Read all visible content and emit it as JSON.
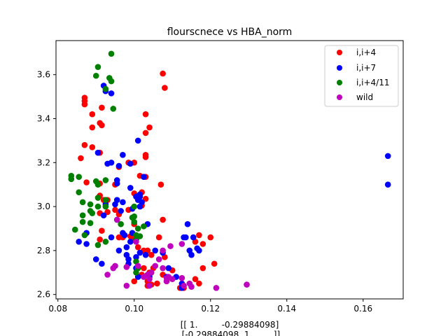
{
  "chart_data": {
    "type": "scatter",
    "title": "flourscnece vs HBA_norm",
    "xlabel_lines": [
      "[[ 1.         -0.29884098]",
      " [-0.29884098  1.        ]]"
    ],
    "ylabel": "",
    "xlim": [
      0.0795,
      0.1705
    ],
    "ylim": [
      2.58,
      3.755
    ],
    "xticks": [
      "0.08",
      "0.10",
      "0.12",
      "0.14",
      "0.16"
    ],
    "xtick_values": [
      0.08,
      0.1,
      0.12,
      0.14,
      0.16
    ],
    "yticks": [
      "2.6",
      "2.8",
      "3.0",
      "3.2",
      "3.4",
      "3.6"
    ],
    "ytick_values": [
      2.6,
      2.8,
      3.0,
      3.2,
      3.4,
      3.6
    ],
    "legend_position": "top-right",
    "grid": false,
    "series": [
      {
        "name": "i,i+4",
        "color": "#ff0000",
        "points": [
          [
            0.087,
            3.495
          ],
          [
            0.087,
            3.48
          ],
          [
            0.087,
            3.465
          ],
          [
            0.089,
            3.42
          ],
          [
            0.089,
            3.36
          ],
          [
            0.091,
            3.38
          ],
          [
            0.0915,
            3.37
          ],
          [
            0.0915,
            3.45
          ],
          [
            0.087,
            3.28
          ],
          [
            0.089,
            3.27
          ],
          [
            0.091,
            3.245
          ],
          [
            0.086,
            3.22
          ],
          [
            0.0875,
            3.11
          ],
          [
            0.091,
            3.105
          ],
          [
            0.096,
            3.18
          ],
          [
            0.0985,
            3.2
          ],
          [
            0.1,
            3.2
          ],
          [
            0.1015,
            3.14
          ],
          [
            0.103,
            3.42
          ],
          [
            0.103,
            3.335
          ],
          [
            0.104,
            3.36
          ],
          [
            0.1075,
            3.605
          ],
          [
            0.108,
            3.54
          ],
          [
            0.103,
            3.235
          ],
          [
            0.103,
            3.225
          ],
          [
            0.103,
            3.135
          ],
          [
            0.107,
            3.1
          ],
          [
            0.102,
            3.065
          ],
          [
            0.103,
            3.035
          ],
          [
            0.095,
            3.1
          ],
          [
            0.093,
            3.03
          ],
          [
            0.091,
            3.05
          ],
          [
            0.092,
            3.03
          ],
          [
            0.091,
            2.97
          ],
          [
            0.093,
            2.975
          ],
          [
            0.095,
            2.985
          ],
          [
            0.096,
            2.965
          ],
          [
            0.0985,
            2.985
          ],
          [
            0.1,
            3.06
          ],
          [
            0.102,
            3.005
          ],
          [
            0.1,
            2.92
          ],
          [
            0.099,
            2.865
          ],
          [
            0.096,
            2.86
          ],
          [
            0.097,
            2.86
          ],
          [
            0.091,
            2.85
          ],
          [
            0.0915,
            2.89
          ],
          [
            0.1,
            2.85
          ],
          [
            0.101,
            2.815
          ],
          [
            0.1035,
            2.8
          ],
          [
            0.1045,
            2.78
          ],
          [
            0.1025,
            2.8
          ],
          [
            0.1065,
            2.86
          ],
          [
            0.1075,
            2.94
          ],
          [
            0.108,
            2.77
          ],
          [
            0.1025,
            2.72
          ],
          [
            0.104,
            2.7
          ],
          [
            0.105,
            2.72
          ],
          [
            0.102,
            2.69
          ],
          [
            0.1035,
            2.66
          ],
          [
            0.1035,
            2.64
          ],
          [
            0.1045,
            2.645
          ],
          [
            0.106,
            2.65
          ],
          [
            0.1075,
            2.69
          ],
          [
            0.1085,
            2.66
          ],
          [
            0.11,
            2.71
          ],
          [
            0.112,
            2.63
          ],
          [
            0.113,
            2.63
          ],
          [
            0.116,
            2.67
          ],
          [
            0.117,
            2.65
          ],
          [
            0.116,
            2.84
          ],
          [
            0.117,
            2.87
          ],
          [
            0.118,
            2.83
          ],
          [
            0.12,
            2.86
          ],
          [
            0.118,
            2.72
          ],
          [
            0.121,
            2.74
          ],
          [
            0.1,
            2.66
          ]
        ]
      },
      {
        "name": "i,i+7",
        "color": "#0000ff",
        "points": [
          [
            0.0925,
            3.525
          ],
          [
            0.094,
            3.515
          ],
          [
            0.092,
            3.55
          ],
          [
            0.0905,
            3.245
          ],
          [
            0.097,
            3.235
          ],
          [
            0.093,
            3.195
          ],
          [
            0.094,
            3.2
          ],
          [
            0.096,
            3.185
          ],
          [
            0.099,
            3.195
          ],
          [
            0.1025,
            3.135
          ],
          [
            0.0955,
            3.12
          ],
          [
            0.0955,
            3.105
          ],
          [
            0.099,
            3.085
          ],
          [
            0.1005,
            3.045
          ],
          [
            0.101,
            3.03
          ],
          [
            0.1015,
            3.055
          ],
          [
            0.1015,
            3.045
          ],
          [
            0.102,
            3.02
          ],
          [
            0.1015,
            3.0
          ],
          [
            0.0995,
            2.99
          ],
          [
            0.0965,
            2.98
          ],
          [
            0.097,
            3.02
          ],
          [
            0.0925,
            3.01
          ],
          [
            0.0955,
            3.03
          ],
          [
            0.095,
            3.01
          ],
          [
            0.092,
            2.96
          ],
          [
            0.094,
            2.86
          ],
          [
            0.097,
            2.88
          ],
          [
            0.0975,
            2.87
          ],
          [
            0.1005,
            2.85
          ],
          [
            0.099,
            2.84
          ],
          [
            0.1035,
            2.92
          ],
          [
            0.0995,
            2.88
          ],
          [
            0.0875,
            2.88
          ],
          [
            0.0855,
            2.84
          ],
          [
            0.0875,
            2.83
          ],
          [
            0.096,
            2.8
          ],
          [
            0.098,
            2.815
          ],
          [
            0.098,
            2.78
          ],
          [
            0.0985,
            2.76
          ],
          [
            0.1005,
            2.77
          ],
          [
            0.1015,
            2.79
          ],
          [
            0.103,
            2.78
          ],
          [
            0.1055,
            2.8
          ],
          [
            0.1075,
            2.79
          ],
          [
            0.09,
            2.76
          ],
          [
            0.0915,
            2.74
          ],
          [
            0.0985,
            2.74
          ],
          [
            0.1005,
            2.72
          ],
          [
            0.101,
            2.68
          ],
          [
            0.104,
            2.68
          ],
          [
            0.104,
            2.69
          ],
          [
            0.111,
            2.68
          ],
          [
            0.1085,
            2.68
          ],
          [
            0.109,
            2.72
          ],
          [
            0.1125,
            2.63
          ],
          [
            0.1125,
            2.65
          ],
          [
            0.113,
            2.86
          ],
          [
            0.1135,
            2.86
          ],
          [
            0.114,
            2.92
          ],
          [
            0.1145,
            2.8
          ],
          [
            0.115,
            2.78
          ],
          [
            0.1155,
            2.86
          ],
          [
            0.1165,
            2.81
          ],
          [
            0.117,
            2.8
          ],
          [
            0.101,
            3.3
          ],
          [
            0.1665,
            3.23
          ],
          [
            0.1665,
            3.1
          ]
        ]
      },
      {
        "name": "i,i+4/11",
        "color": "#008000",
        "points": [
          [
            0.094,
            3.695
          ],
          [
            0.0905,
            3.635
          ],
          [
            0.09,
            3.595
          ],
          [
            0.0935,
            3.585
          ],
          [
            0.094,
            3.57
          ],
          [
            0.0925,
            3.535
          ],
          [
            0.0945,
            3.445
          ],
          [
            0.0835,
            3.14
          ],
          [
            0.0835,
            3.125
          ],
          [
            0.0855,
            3.135
          ],
          [
            0.09,
            3.115
          ],
          [
            0.0925,
            3.12
          ],
          [
            0.0905,
            3.1
          ],
          [
            0.0855,
            3.065
          ],
          [
            0.0905,
            3.04
          ],
          [
            0.0865,
            3.02
          ],
          [
            0.0885,
            3.01
          ],
          [
            0.0905,
            3.0
          ],
          [
            0.0925,
            3.03
          ],
          [
            0.0885,
            2.98
          ],
          [
            0.089,
            2.97
          ],
          [
            0.0865,
            2.96
          ],
          [
            0.0925,
            3.0
          ],
          [
            0.1,
            3.0
          ],
          [
            0.1,
            2.955
          ],
          [
            0.101,
            2.9
          ],
          [
            0.1025,
            2.91
          ],
          [
            0.0995,
            2.95
          ],
          [
            0.0865,
            2.93
          ],
          [
            0.0885,
            2.925
          ],
          [
            0.0955,
            2.94
          ],
          [
            0.0965,
            2.92
          ],
          [
            0.1,
            2.93
          ],
          [
            0.1005,
            2.87
          ],
          [
            0.0845,
            2.895
          ],
          [
            0.087,
            2.87
          ],
          [
            0.0905,
            2.825
          ],
          [
            0.0925,
            2.84
          ],
          [
            0.1015,
            2.865
          ],
          [
            0.1005,
            2.85
          ],
          [
            0.1005,
            2.75
          ],
          [
            0.101,
            2.72
          ],
          [
            0.1005,
            2.7
          ]
        ]
      },
      {
        "name": "wild",
        "color": "#bf00bf",
        "points": [
          [
            0.0955,
            2.94
          ],
          [
            0.1005,
            2.84
          ],
          [
            0.1075,
            2.8
          ],
          [
            0.1095,
            2.82
          ],
          [
            0.1125,
            2.83
          ],
          [
            0.095,
            2.73
          ],
          [
            0.0945,
            2.72
          ],
          [
            0.098,
            2.725
          ],
          [
            0.101,
            2.73
          ],
          [
            0.093,
            2.69
          ],
          [
            0.1035,
            2.69
          ],
          [
            0.1045,
            2.7
          ],
          [
            0.1025,
            2.68
          ],
          [
            0.104,
            2.67
          ],
          [
            0.1055,
            2.73
          ],
          [
            0.1065,
            2.76
          ],
          [
            0.1075,
            2.72
          ],
          [
            0.109,
            2.68
          ],
          [
            0.1085,
            2.675
          ],
          [
            0.11,
            2.67
          ],
          [
            0.098,
            2.64
          ],
          [
            0.104,
            2.64
          ],
          [
            0.1085,
            2.66
          ],
          [
            0.1125,
            2.675
          ],
          [
            0.113,
            2.64
          ],
          [
            0.1145,
            2.65
          ],
          [
            0.115,
            2.635
          ],
          [
            0.1215,
            2.63
          ],
          [
            0.1295,
            2.645
          ]
        ]
      }
    ]
  }
}
